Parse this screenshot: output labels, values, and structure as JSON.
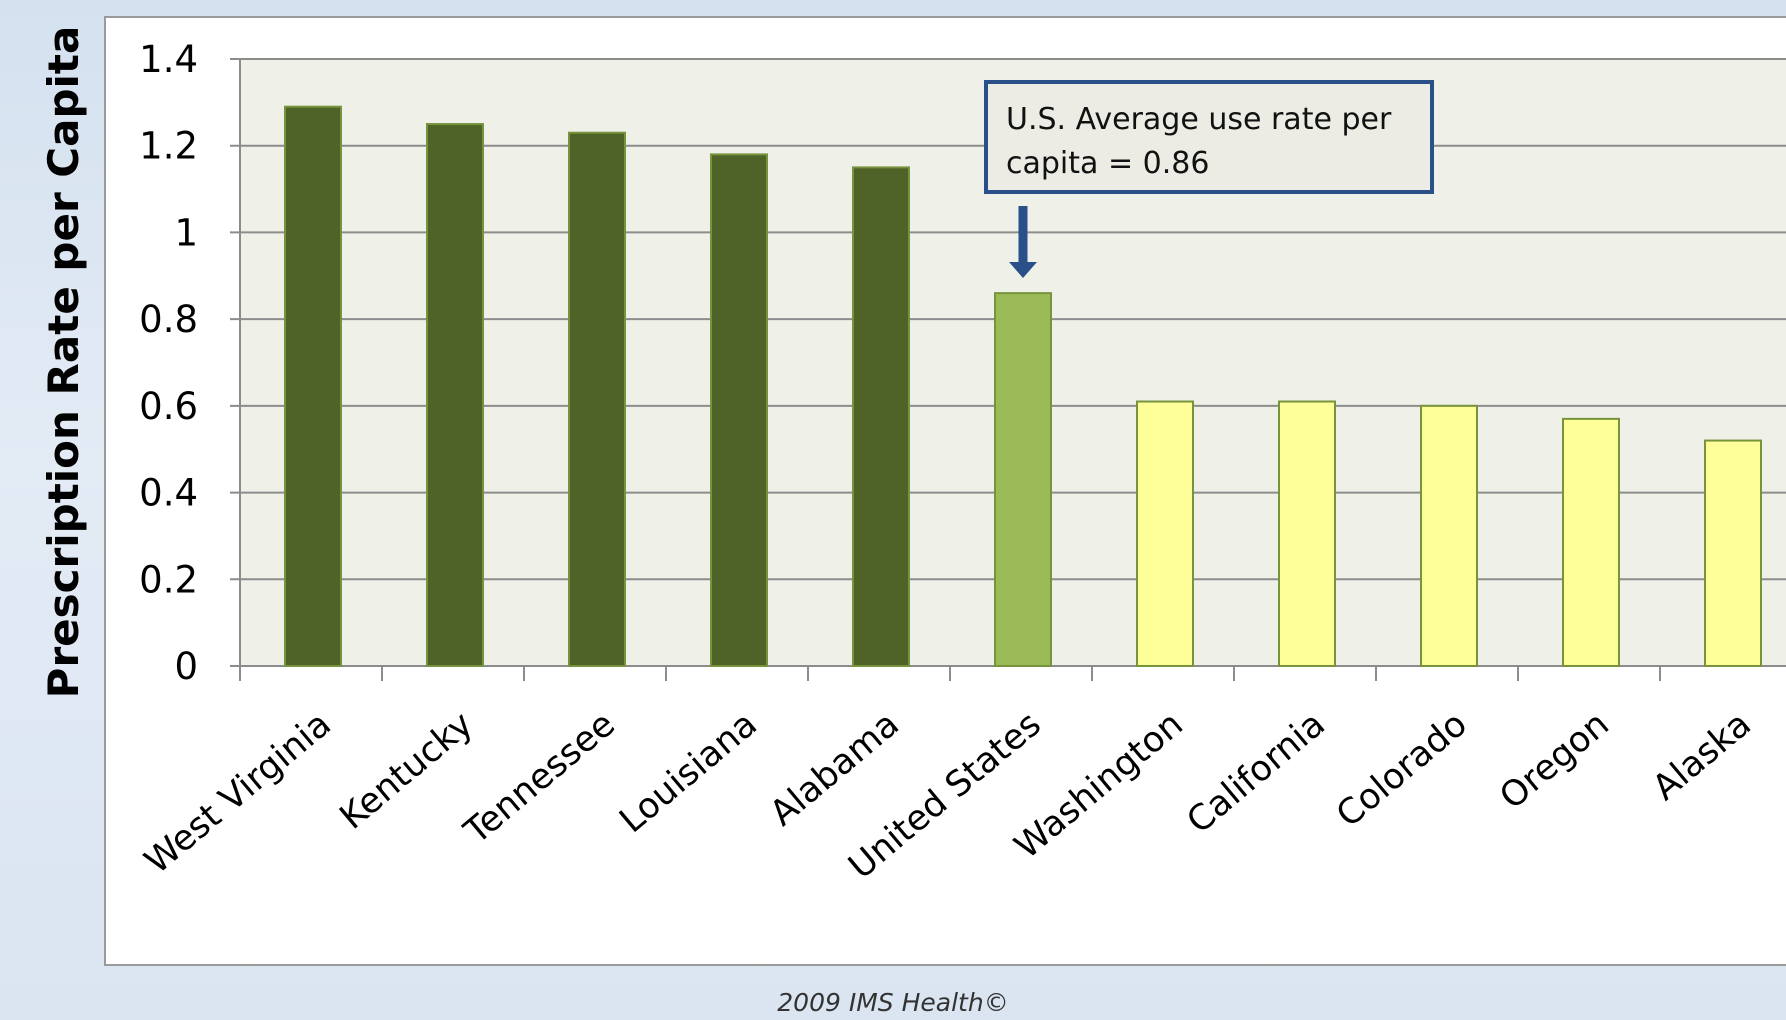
{
  "chart_data": {
    "type": "bar",
    "ylabel": "Prescription Rate per Capita",
    "xlabel": "",
    "ylim": [
      0,
      1.4
    ],
    "yticks": [
      "0",
      "0.2",
      "0.4",
      "0.6",
      "0.8",
      "1",
      "1.2",
      "1.4"
    ],
    "grid": true,
    "categories": [
      "West Virginia",
      "Kentucky",
      "Tennessee",
      "Louisiana",
      "Alabama",
      "United States",
      "Washington",
      "California",
      "Colorado",
      "Oregon",
      "Alaska"
    ],
    "values": [
      1.29,
      1.25,
      1.23,
      1.18,
      1.15,
      0.86,
      0.61,
      0.61,
      0.6,
      0.57,
      0.52
    ],
    "bar_colors": [
      "#4f6228",
      "#4f6228",
      "#4f6228",
      "#4f6228",
      "#4f6228",
      "#9bbb59",
      "#ffff99",
      "#ffff99",
      "#ffff99",
      "#ffff99",
      "#ffff99"
    ],
    "bar_stroke": "#77933c",
    "plot_background": "#eff1e8",
    "annotation": "U.S. Average use rate per capita = 0.86",
    "annotation_border": "#2a5089"
  },
  "source_note": "2009 IMS Health©"
}
